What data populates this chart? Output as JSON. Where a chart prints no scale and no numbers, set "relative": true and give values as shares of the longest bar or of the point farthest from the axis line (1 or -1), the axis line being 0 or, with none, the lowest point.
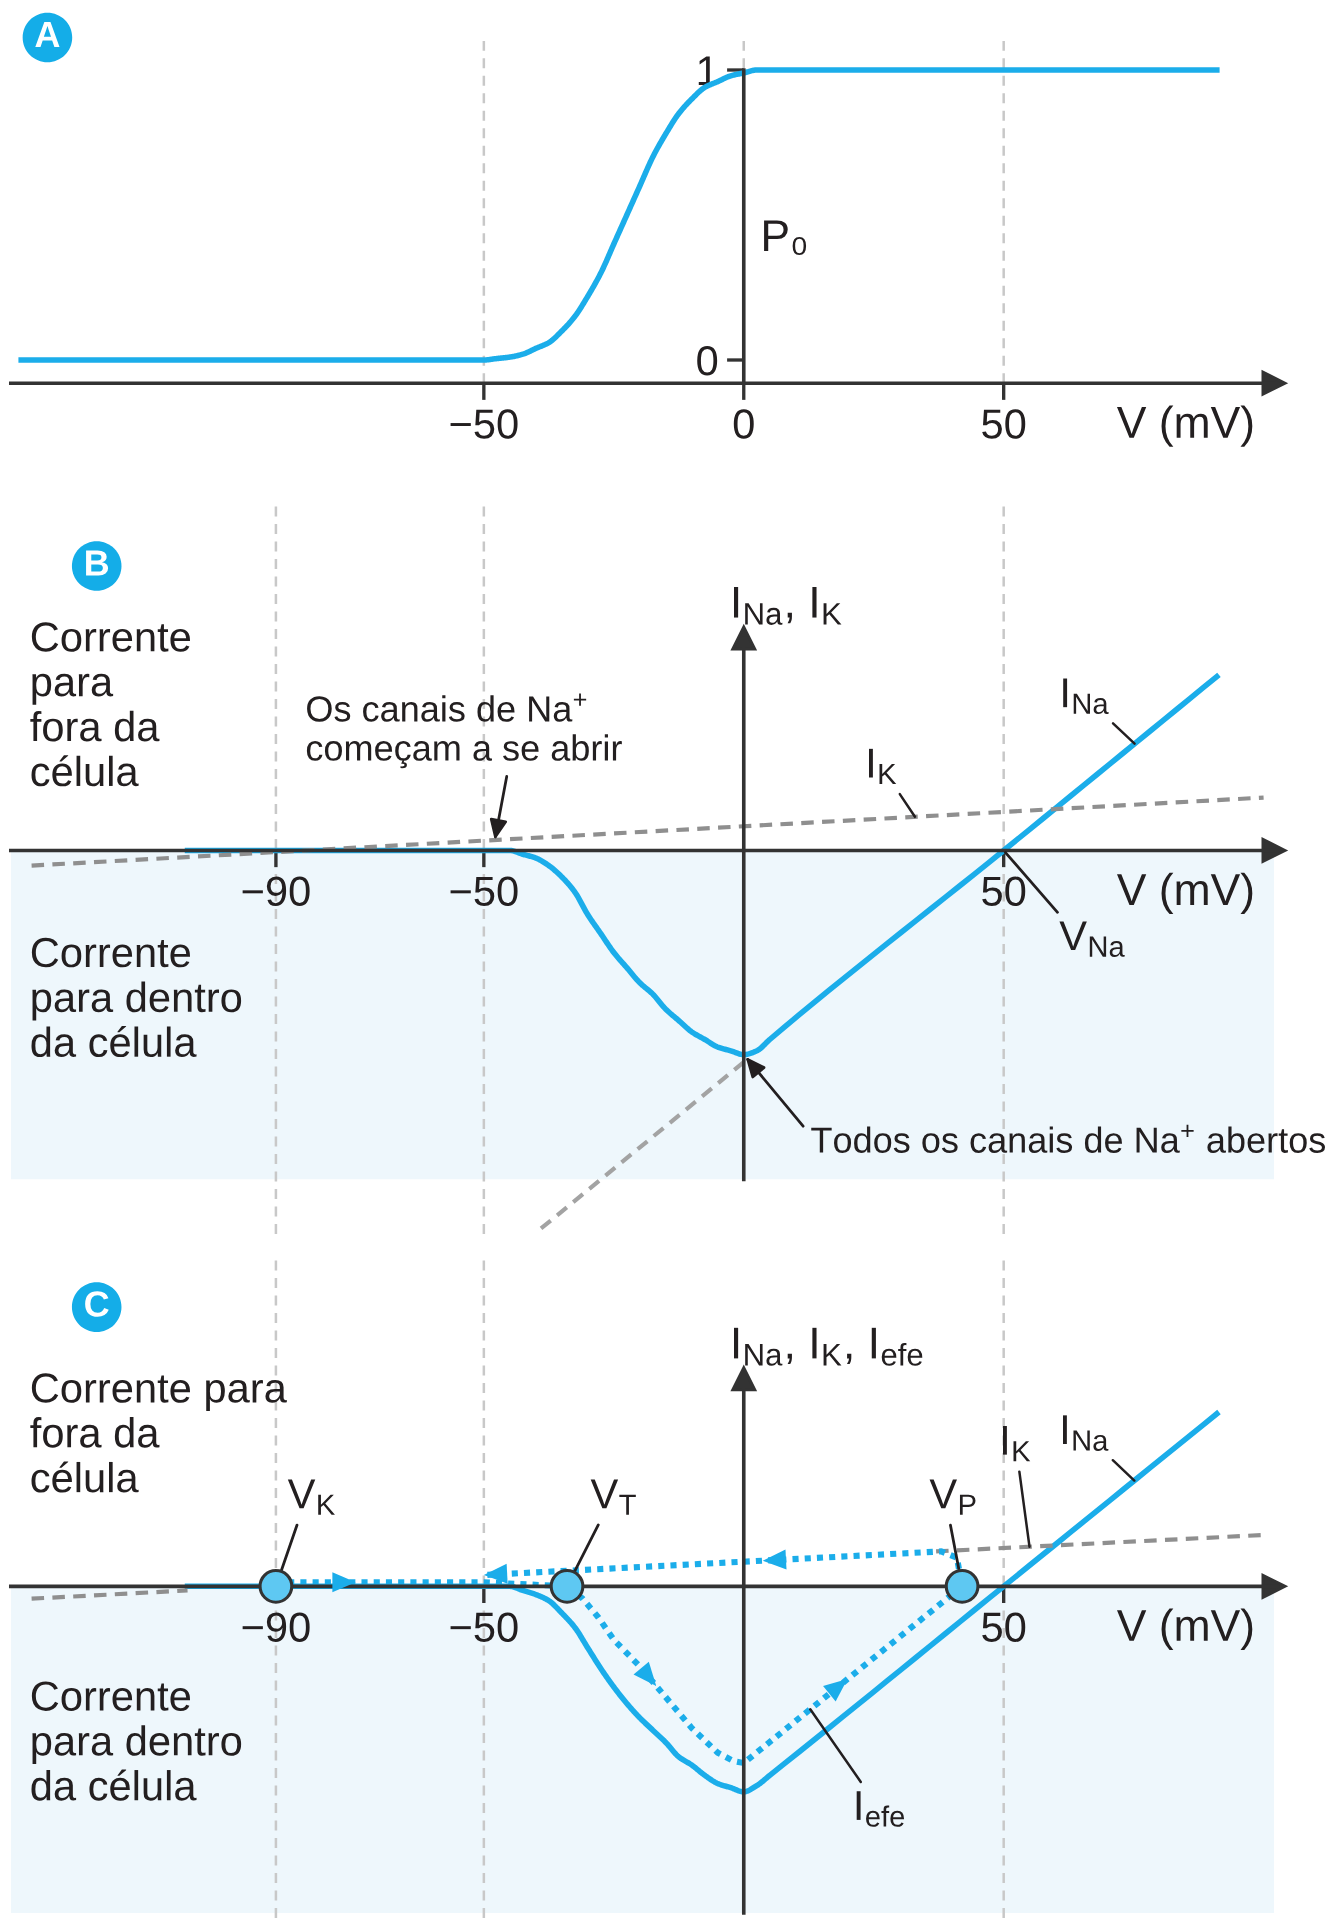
{
  "chart_data": [
    {
      "type": "line",
      "title": "A",
      "xlabel": "V (mV)",
      "ylabel": "P₀",
      "xlim": [
        -141,
        102
      ],
      "xticks": [
        -50,
        0,
        50
      ],
      "ylim": [
        -0.08,
        1.1
      ],
      "yticks": [
        0,
        1
      ],
      "grid": "x",
      "series": [
        {
          "color": "#1badea",
          "line_style": "solid",
          "x": [
            -139,
            -50,
            -47.5,
            -45,
            -42.5,
            -40,
            -37.5,
            -35,
            -32.5,
            -30,
            -27.5,
            -25,
            -22.5,
            -20,
            -17.5,
            -15,
            -12.5,
            -10,
            -7.5,
            -5,
            -2.5,
            0,
            2.5,
            5,
            91
          ],
          "values": [
            0,
            0,
            0.005,
            0.01,
            0.02,
            0.04,
            0.06,
            0.1,
            0.15,
            0.22,
            0.3,
            0.4,
            0.5,
            0.6,
            0.7,
            0.78,
            0.85,
            0.9,
            0.94,
            0.96,
            0.98,
            0.99,
            1,
            1,
            1
          ]
        }
      ]
    },
    {
      "type": "line",
      "title": "B",
      "xlabel": "V (mV)",
      "ylabel": "I$_{Na}$, I$_{K}$",
      "relative": true,
      "xlim": [
        -141,
        102
      ],
      "xticks": [
        -90,
        -50,
        50
      ],
      "grid": "x",
      "tick_labels": "x",
      "bands": [
        {
          "axis": "y",
          "from": -0.87,
          "to": 0,
          "color": "#eef7fc"
        }
      ],
      "annotations": [
        "Corrente\npara\nfora da\ncélula",
        {
          "text": "Os canais de Na$^{+}$\ncomeçam a se abrir",
          "x": -48,
          "y": 0.02
        },
        {
          "text": "V$_{Na}$",
          "x": 50,
          "y": 0
        },
        {
          "text": "Todos os canais de Na$^{+}$ abertos",
          "x": 0,
          "y": -0.54
        },
        "Corrente\npara dentro\nda célula"
      ],
      "series": [
        {
          "name": "I$_{Na}$",
          "color": "#1badea",
          "line_style": "solid",
          "x": [
            -107,
            -45,
            -42.5,
            -40,
            -37.5,
            -35,
            -32.5,
            -30,
            -27.5,
            -25,
            -22.5,
            -20,
            -17.5,
            -15,
            -12.5,
            -10,
            -7.5,
            -5,
            -2.5,
            0,
            2.5,
            5,
            50,
            91
          ],
          "values": [
            0,
            0,
            -0.01,
            -0.02,
            -0.04,
            -0.07,
            -0.11,
            -0.17,
            -0.22,
            -0.27,
            -0.31,
            -0.35,
            -0.38,
            -0.42,
            -0.45,
            -0.48,
            -0.5,
            -0.52,
            -0.53,
            -0.54,
            -0.53,
            -0.5,
            0,
            0.46
          ]
        },
        {
          "name": "I$_{K}$",
          "color": "#8f8f8f",
          "line_style": "dashed",
          "x": [
            -137,
            100
          ],
          "values": [
            -0.04,
            0.14
          ]
        },
        {
          "color": "#a3a3a3",
          "line_style": "dashed",
          "x": [
            -39,
            0
          ],
          "values": [
            -1,
            -0.56
          ]
        }
      ]
    },
    {
      "type": "line",
      "title": "C",
      "xlabel": "V (mV)",
      "ylabel": "I$_{Na}$, I$_{K}$, I$_{efe}$",
      "relative": true,
      "xlim": [
        -141,
        102
      ],
      "xticks": [
        -90,
        -50,
        50
      ],
      "grid": "x",
      "tick_labels": "x",
      "bands": [
        {
          "axis": "y",
          "from": -1.59,
          "to": 0,
          "color": "#eef7fc"
        }
      ],
      "annotations": [
        "Corrente para\nfora da\ncélula",
        {
          "text": "V$_{K}$",
          "x": -90,
          "y": 0
        },
        {
          "text": "V$_{T}$",
          "x": -34,
          "y": 0
        },
        {
          "text": "V$_{P}$",
          "x": 42,
          "y": 0
        },
        "Corrente\npara dentro\nda célula"
      ],
      "series": [
        {
          "name": "I$_{Na}$",
          "color": "#1badea",
          "line_style": "solid",
          "x": [
            -107,
            -45,
            -42.5,
            -40,
            -37.5,
            -35,
            -32.5,
            -30,
            -27.5,
            -25,
            -22.5,
            -20,
            -17.5,
            -15,
            -12.5,
            -10,
            -7.5,
            -5,
            -2.5,
            0,
            2.5,
            5,
            50,
            91
          ],
          "values": [
            0,
            0,
            -0.02,
            -0.04,
            -0.07,
            -0.13,
            -0.2,
            -0.3,
            -0.4,
            -0.49,
            -0.57,
            -0.64,
            -0.7,
            -0.76,
            -0.83,
            -0.87,
            -0.92,
            -0.96,
            -0.98,
            -1,
            -0.97,
            -0.92,
            0,
            0.84
          ]
        },
        {
          "name": "I$_{K}$",
          "color": "#8f8f8f",
          "line_style": "dashed",
          "x": [
            -137,
            -107,
            0,
            37,
            100
          ],
          "values": [
            -0.06,
            -0.02,
            null,
            0.17,
            0.25
          ]
        },
        {
          "name": "I$_{efe}$",
          "color": "#1badea",
          "line_style": "dotted",
          "x": [
            -90,
            -50,
            -34,
            -31,
            -28,
            -25,
            -20,
            -15,
            -10,
            -5,
            -2,
            0,
            42,
            41,
            38,
            0,
            -50
          ],
          "values": [
            0.02,
            0.02,
            0,
            -0.06,
            -0.15,
            -0.26,
            -0.39,
            -0.54,
            -0.69,
            -0.81,
            -0.85,
            -0.86,
            0,
            0.14,
            0.17,
            0.12,
            0.055
          ]
        },
        {
          "type": "scatter",
          "color": "#5ec8f2",
          "marker": "circle",
          "x": [
            -90,
            -34,
            42
          ],
          "values": [
            0,
            0,
            0
          ]
        }
      ]
    }
  ]
}
